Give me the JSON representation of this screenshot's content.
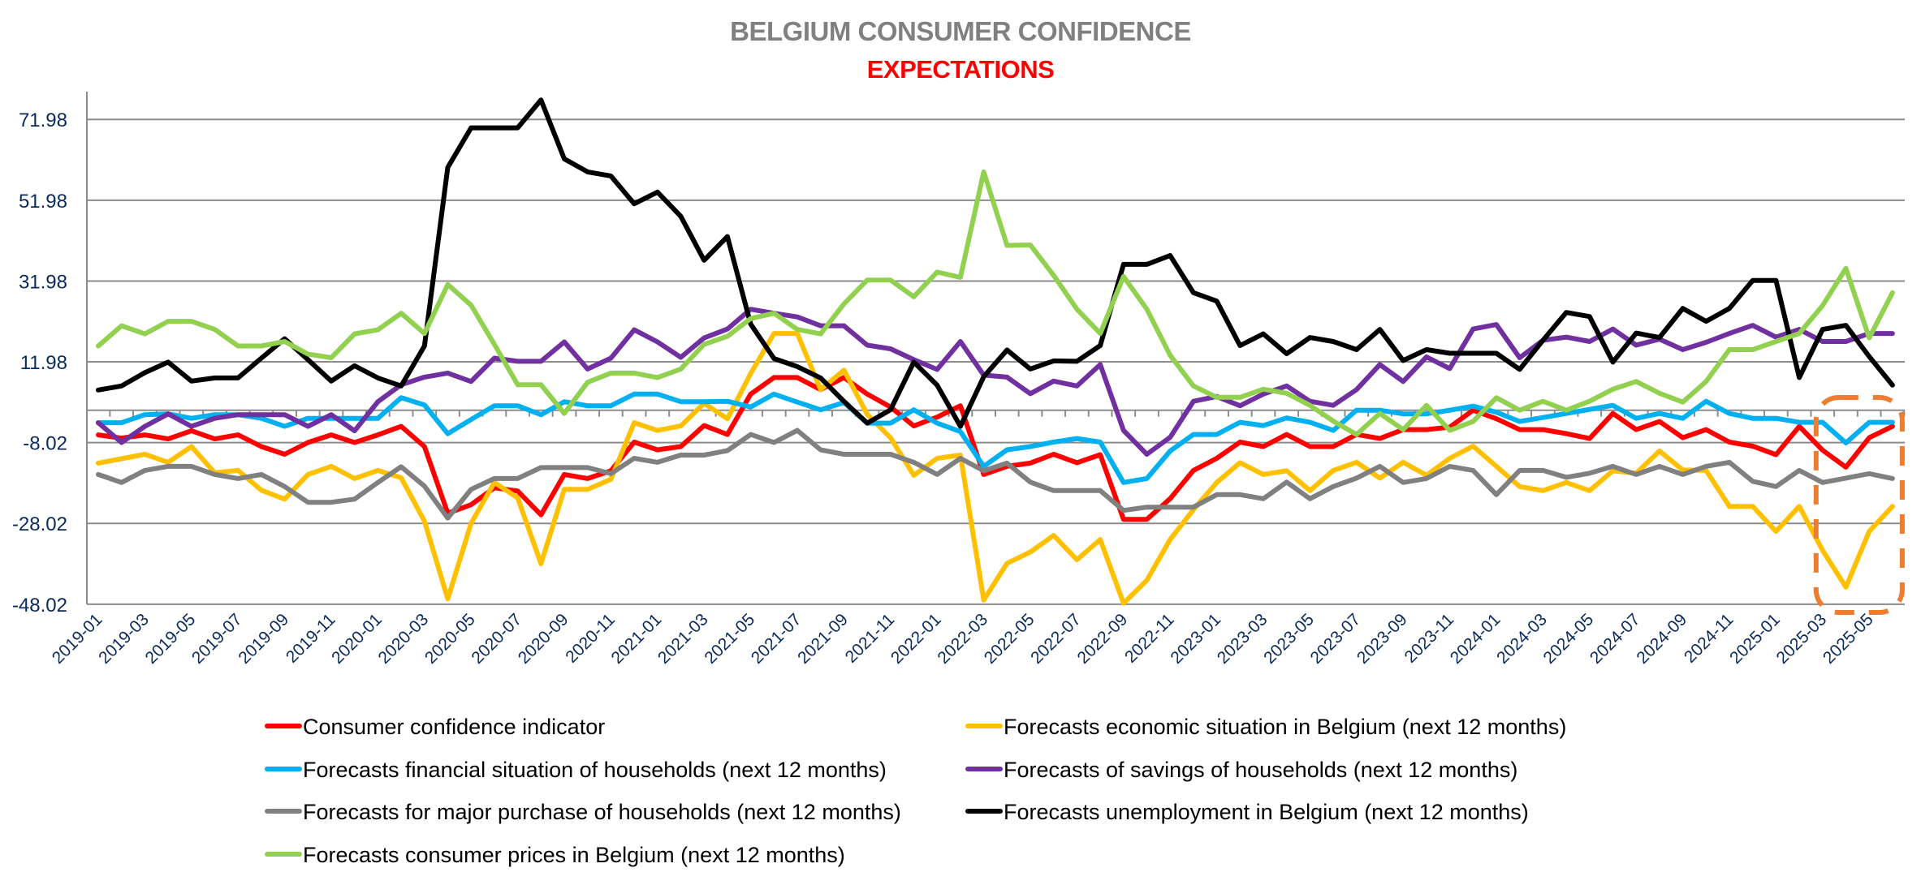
{
  "chart_data": {
    "type": "line",
    "title": "BELGIUM CONSUMER CONFIDENCE",
    "subtitle": "EXPECTATIONS",
    "xlabel": "",
    "ylabel": "",
    "ylim": [
      -48.02,
      81.98
    ],
    "yticks": [
      -48.02,
      -28.02,
      -8.02,
      11.98,
      31.98,
      51.98,
      71.98
    ],
    "ytick_labels": [
      "-48.02",
      "-28.02",
      "-8.02",
      "11.98",
      "31.98",
      "51.98",
      "71.98"
    ],
    "grid": true,
    "legend_position": "bottom",
    "x": [
      "2019-01",
      "2019-02",
      "2019-03",
      "2019-04",
      "2019-05",
      "2019-06",
      "2019-07",
      "2019-08",
      "2019-09",
      "2019-10",
      "2019-11",
      "2019-12",
      "2020-01",
      "2020-02",
      "2020-03",
      "2020-04",
      "2020-05",
      "2020-06",
      "2020-07",
      "2020-08",
      "2020-09",
      "2020-10",
      "2020-11",
      "2020-12",
      "2021-01",
      "2021-02",
      "2021-03",
      "2021-04",
      "2021-05",
      "2021-06",
      "2021-07",
      "2021-08",
      "2021-09",
      "2021-10",
      "2021-11",
      "2021-12",
      "2022-01",
      "2022-02",
      "2022-03",
      "2022-04",
      "2022-05",
      "2022-06",
      "2022-07",
      "2022-08",
      "2022-09",
      "2022-10",
      "2022-11",
      "2022-12",
      "2023-01",
      "2023-02",
      "2023-03",
      "2023-04",
      "2023-05",
      "2023-06",
      "2023-07",
      "2023-08",
      "2023-09",
      "2023-10",
      "2023-11",
      "2023-12",
      "2024-01",
      "2024-02",
      "2024-03",
      "2024-04",
      "2024-05",
      "2024-06",
      "2024-07",
      "2024-08",
      "2024-09",
      "2024-10",
      "2024-11",
      "2024-12",
      "2025-01",
      "2025-02",
      "2025-03",
      "2025-04",
      "2025-05",
      "2025-06"
    ],
    "xtick_labels": [
      "2019-01",
      "2019-03",
      "2019-05",
      "2019-07",
      "2019-09",
      "2019-11",
      "2020-01",
      "2020-03",
      "2020-05",
      "2020-07",
      "2020-09",
      "2020-11",
      "2021-01",
      "2021-03",
      "2021-05",
      "2021-07",
      "2021-09",
      "2021-11",
      "2022-01",
      "2022-03",
      "2022-05",
      "2022-07",
      "2022-09",
      "2022-11",
      "2023-01",
      "2023-03",
      "2023-05",
      "2023-07",
      "2023-09",
      "2023-11",
      "2024-01",
      "2024-03",
      "2024-05",
      "2024-07",
      "2024-09",
      "2024-11",
      "2025-01",
      "2025-03",
      "2025-05"
    ],
    "series": [
      {
        "name": "Consumer confidence indicator",
        "color": "#ff0000",
        "values": [
          -6.1,
          -6.9,
          -6.1,
          -7.1,
          -5.1,
          -7.1,
          -6.1,
          -9.0,
          -10.9,
          -8.0,
          -6.1,
          -8.0,
          -6.1,
          -4.0,
          -9.0,
          -25.5,
          -23.4,
          -19.2,
          -20.0,
          -25.9,
          -15.9,
          -16.9,
          -15.0,
          -7.9,
          -9.8,
          -9.0,
          -3.8,
          -6.0,
          4.0,
          8.1,
          8.1,
          5.1,
          8.1,
          4.0,
          0.8,
          -3.9,
          -1.7,
          1.1,
          -15.9,
          -13.9,
          -13.1,
          -10.9,
          -13.0,
          -11.0,
          -27.0,
          -27.0,
          -21.9,
          -14.9,
          -11.9,
          -7.9,
          -9.0,
          -6.0,
          -9.0,
          -9.0,
          -6.0,
          -7.0,
          -4.8,
          -4.8,
          -4.2,
          0.0,
          -2.1,
          -4.8,
          -4.8,
          -5.8,
          -7.0,
          -0.8,
          -4.8,
          -2.8,
          -6.8,
          -4.8,
          -7.9,
          -8.9,
          -11.0,
          -4.0,
          -9.9,
          -14.1,
          -6.8,
          -4.0
        ]
      },
      {
        "name": "Forecasts economic situation in Belgium (next 12 months)",
        "color": "#ffc000",
        "values": [
          -13.1,
          -12.0,
          -10.9,
          -12.9,
          -9.0,
          -15.5,
          -14.9,
          -19.8,
          -22.0,
          -15.9,
          -13.9,
          -16.9,
          -14.9,
          -16.7,
          -27.5,
          -46.7,
          -28.0,
          -17.9,
          -21.7,
          -38.0,
          -19.6,
          -19.6,
          -17.1,
          -3.1,
          -5.0,
          -3.9,
          1.7,
          -2.1,
          9.1,
          19.0,
          19.0,
          5.1,
          9.9,
          -1.0,
          -6.8,
          -16.1,
          -11.9,
          -11.1,
          -47.0,
          -37.9,
          -35.1,
          -31.0,
          -37.0,
          -32.0,
          -47.8,
          -42.1,
          -32.0,
          -24.6,
          -17.9,
          -13.0,
          -15.9,
          -15.0,
          -19.9,
          -14.9,
          -12.9,
          -16.8,
          -12.9,
          -16.1,
          -11.9,
          -8.9,
          -13.9,
          -18.9,
          -19.9,
          -17.9,
          -19.9,
          -15.0,
          -15.6,
          -10.1,
          -14.8,
          -14.9,
          -23.8,
          -23.8,
          -30.0,
          -23.8,
          -34.7,
          -43.8,
          -30.0,
          -23.8
        ]
      },
      {
        "name": "Forecasts financial situation of households (next 12 months)",
        "color": "#00b0f0",
        "values": [
          -3.1,
          -3.1,
          -1.1,
          -0.9,
          -2.0,
          -1.1,
          -1.1,
          -2.0,
          -4.0,
          -2.0,
          -2.0,
          -2.0,
          -2.0,
          3.1,
          1.3,
          -5.8,
          -2.3,
          1.1,
          1.1,
          -1.1,
          2.1,
          1.1,
          1.1,
          4.0,
          4.0,
          2.1,
          2.1,
          2.2,
          0.8,
          4.0,
          2.0,
          0.1,
          1.9,
          -3.2,
          -3.2,
          0.1,
          -3.2,
          -5.3,
          -13.9,
          -9.8,
          -9.0,
          -7.9,
          -7.0,
          -7.9,
          -17.9,
          -16.9,
          -10.1,
          -6.0,
          -6.0,
          -3.0,
          -3.8,
          -1.9,
          -3.0,
          -5.0,
          0.0,
          0.0,
          -0.9,
          -0.9,
          0.0,
          1.0,
          -0.5,
          -2.8,
          -1.8,
          -0.8,
          0.2,
          1.2,
          -2.0,
          -0.8,
          -2.0,
          2.2,
          -0.8,
          -2.0,
          -2.0,
          -3.0,
          -3.0,
          -8.1,
          -3.0,
          -3.0
        ]
      },
      {
        "name": "Forecasts of savings of households (next 12 months)",
        "color": "#7030a0",
        "values": [
          -3.1,
          -8.0,
          -4.0,
          -0.9,
          -4.0,
          -2.0,
          -1.1,
          -1.1,
          -1.1,
          -4.0,
          -1.1,
          -5.1,
          2.1,
          6.3,
          8.2,
          9.2,
          7.1,
          12.9,
          12.1,
          12.1,
          16.9,
          10.2,
          12.9,
          19.9,
          16.9,
          13.1,
          17.9,
          20.1,
          25.0,
          24.0,
          23.1,
          20.9,
          20.9,
          16.1,
          15.2,
          12.5,
          10.1,
          17.0,
          8.7,
          8.2,
          4.1,
          7.2,
          6.0,
          11.3,
          -5.0,
          -10.9,
          -6.7,
          2.2,
          3.4,
          1.1,
          4.0,
          6.0,
          2.2,
          1.2,
          5.1,
          11.3,
          7.1,
          13.2,
          10.3,
          20.1,
          21.2,
          13.0,
          17.3,
          18.1,
          17.0,
          20.1,
          16.1,
          17.6,
          15.0,
          16.8,
          19.0,
          21.0,
          18.1,
          20.0,
          17.0,
          17.0,
          19.0,
          19.0
        ]
      },
      {
        "name": "Forecasts for major purchase of households (next 12 months)",
        "color": "#808080",
        "values": [
          -15.9,
          -17.9,
          -14.9,
          -13.9,
          -13.9,
          -15.9,
          -16.9,
          -15.9,
          -18.9,
          -22.8,
          -22.8,
          -22.0,
          -17.9,
          -14.0,
          -18.8,
          -26.7,
          -19.6,
          -16.9,
          -16.9,
          -14.2,
          -14.2,
          -14.2,
          -15.7,
          -11.9,
          -12.9,
          -11.1,
          -11.1,
          -10.0,
          -6.0,
          -8.0,
          -5.0,
          -9.8,
          -10.9,
          -10.9,
          -10.9,
          -12.9,
          -15.9,
          -11.9,
          -15.0,
          -13.1,
          -17.8,
          -19.9,
          -19.9,
          -19.9,
          -24.8,
          -24.0,
          -24.0,
          -24.0,
          -20.9,
          -20.9,
          -21.9,
          -17.8,
          -21.9,
          -18.9,
          -16.8,
          -13.9,
          -17.9,
          -16.9,
          -13.9,
          -14.9,
          -20.9,
          -14.9,
          -14.9,
          -16.6,
          -15.6,
          -13.9,
          -15.9,
          -13.9,
          -15.9,
          -13.9,
          -12.9,
          -17.6,
          -18.9,
          -14.9,
          -17.9,
          -16.8,
          -15.7,
          -16.9
        ]
      },
      {
        "name": "Forecasts unemployment in Belgium (next 12 months)",
        "color": "#000000",
        "values": [
          5.0,
          6.0,
          9.3,
          11.9,
          7.2,
          8.0,
          8.0,
          12.9,
          17.7,
          12.5,
          7.2,
          11.0,
          8.0,
          6.0,
          15.9,
          60.1,
          69.9,
          69.9,
          69.9,
          76.8,
          62.2,
          59.0,
          58.0,
          51.1,
          54.0,
          48.0,
          37.1,
          43.0,
          21.3,
          12.8,
          10.8,
          8.0,
          2.2,
          -3.2,
          0.1,
          11.9,
          6.2,
          -4.0,
          8.3,
          14.9,
          10.2,
          12.2,
          12.1,
          16.0,
          36.1,
          36.1,
          38.3,
          29.1,
          27.0,
          16.0,
          18.9,
          14.0,
          18.0,
          17.0,
          15.0,
          20.0,
          12.3,
          15.0,
          14.1,
          14.1,
          14.1,
          10.1,
          17.3,
          24.2,
          23.2,
          11.9,
          19.1,
          18.0,
          25.2,
          22.0,
          25.2,
          32.1,
          32.1,
          8.1,
          20.0,
          21.0,
          13.3,
          6.2
        ]
      },
      {
        "name": "Forecasts consumer prices in Belgium (next 12 months)",
        "color": "#92d050",
        "values": [
          15.9,
          20.9,
          18.9,
          22.0,
          22.0,
          20.0,
          15.9,
          15.9,
          17.0,
          13.9,
          13.0,
          18.9,
          19.9,
          24.0,
          19.0,
          31.1,
          26.0,
          16.3,
          6.3,
          6.3,
          -0.8,
          6.9,
          9.2,
          9.2,
          8.1,
          10.2,
          16.3,
          18.3,
          22.7,
          24.0,
          20.0,
          18.9,
          26.3,
          32.2,
          32.2,
          28.1,
          34.2,
          32.9,
          59.0,
          40.8,
          40.9,
          33.4,
          25.0,
          19.0,
          33.1,
          25.0,
          13.6,
          6.0,
          3.2,
          3.2,
          5.2,
          4.2,
          1.2,
          -2.7,
          -6.0,
          -0.8,
          -4.8,
          1.2,
          -5.0,
          -2.8,
          3.1,
          0.0,
          2.2,
          0.0,
          2.2,
          5.2,
          7.1,
          4.2,
          2.0,
          7.1,
          15.0,
          15.0,
          17.0,
          19.0,
          25.9,
          35.1,
          17.9,
          29.1
        ]
      }
    ],
    "legend_order": [
      0,
      1,
      2,
      3,
      4,
      5,
      6
    ],
    "annotation": {
      "type": "dashed-rounded-box",
      "color": "#ed7d31",
      "x_from": "2025-03",
      "x_to": "2025-06",
      "description": "highlight of latest months"
    }
  }
}
